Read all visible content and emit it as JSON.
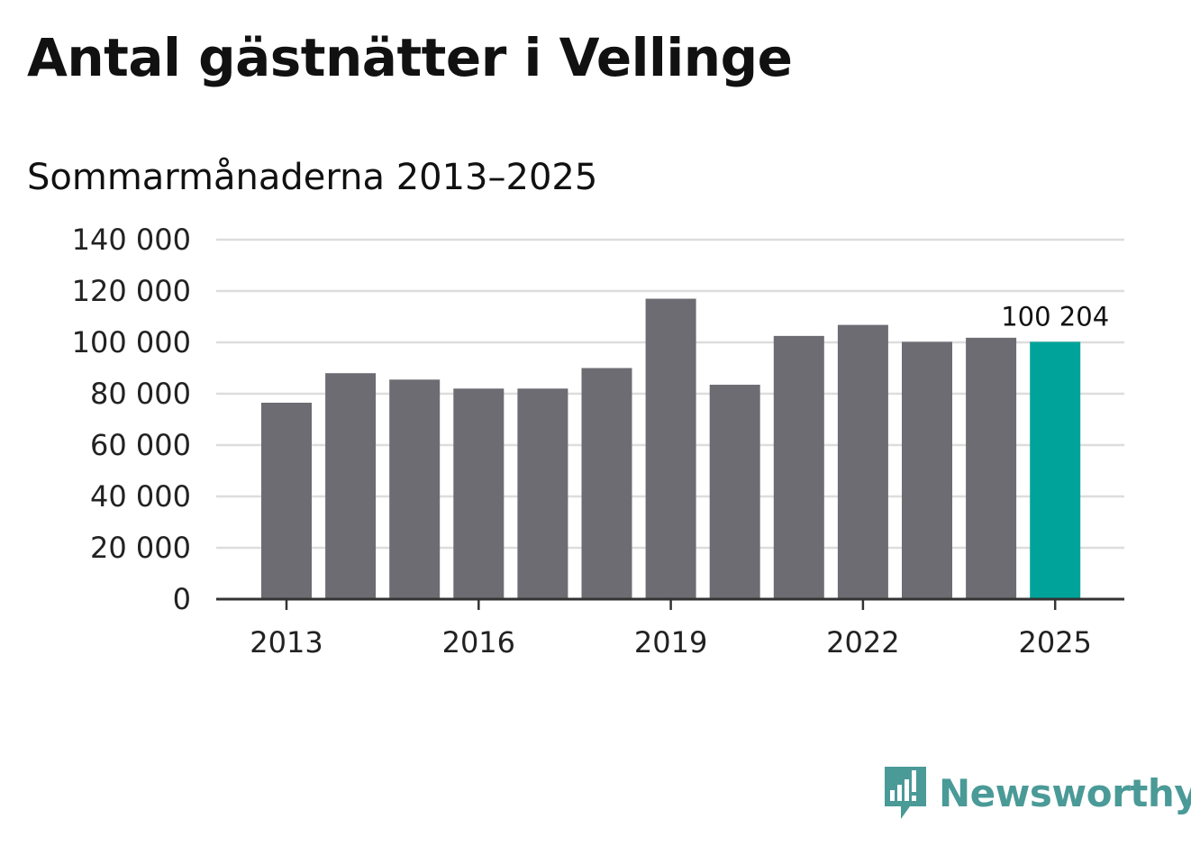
{
  "header": {
    "title": "Antal gästnätter i Vellinge",
    "subtitle": "Sommarmånaderna 2013–2025"
  },
  "chart_data": {
    "type": "bar",
    "title": "Antal gästnätter i Vellinge",
    "subtitle": "Sommarmånaderna 2013–2025",
    "xlabel": "",
    "ylabel": "",
    "categories": [
      "2013",
      "2014",
      "2015",
      "2016",
      "2017",
      "2018",
      "2019",
      "2020",
      "2021",
      "2022",
      "2023",
      "2024",
      "2025"
    ],
    "values": [
      76500,
      88000,
      85500,
      82000,
      82000,
      90000,
      117000,
      83500,
      102500,
      106800,
      100200,
      101800,
      100204
    ],
    "x_tick_labels": [
      "2013",
      "2016",
      "2019",
      "2022",
      "2025"
    ],
    "y_ticks": [
      0,
      20000,
      40000,
      60000,
      80000,
      100000,
      120000,
      140000
    ],
    "y_tick_labels": [
      "0",
      "20 000",
      "40 000",
      "60 000",
      "80 000",
      "100 000",
      "120 000",
      "140 000"
    ],
    "ylim": [
      0,
      140000
    ],
    "grid": true,
    "highlight_index": 12,
    "data_labels": [
      {
        "index": 12,
        "text": "100 204"
      }
    ],
    "colors": {
      "bar": "#6d6c72",
      "highlight": "#00a39a",
      "grid": "#dddddd",
      "axis": "#333333"
    }
  },
  "branding": {
    "logo_text": "Newsworthy",
    "logo_icon": "newsworthy-chart-bubble-icon",
    "color": "#4a9a97"
  }
}
